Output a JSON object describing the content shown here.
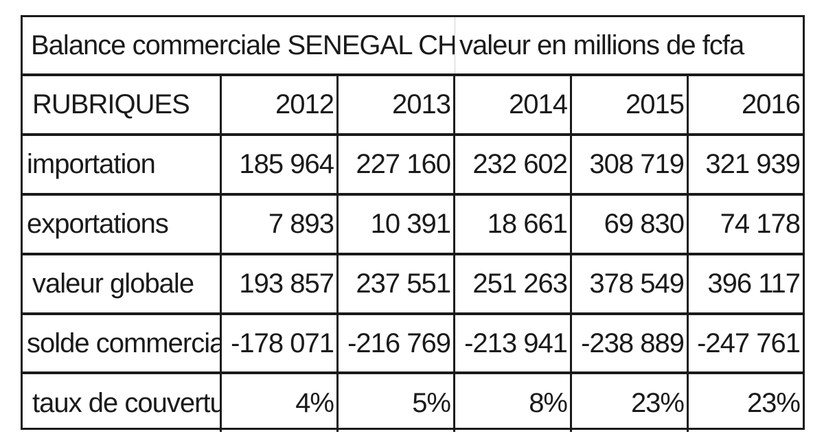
{
  "table": {
    "title": "Balance commerciale  SENEGAL CHINE",
    "unit": "valeur en millions de fcfa",
    "header_label": "RUBRIQUES",
    "years": [
      "2012",
      "2013",
      "2014",
      "2015",
      "2016"
    ],
    "rows": [
      {
        "label": "importation",
        "values": [
          "185 964",
          "227 160",
          "232 602",
          "308 719",
          "321 939"
        ]
      },
      {
        "label": "exportations",
        "values": [
          "7 893",
          "10 391",
          "18 661",
          "69 830",
          "74 178"
        ]
      },
      {
        "label": "valeur globale",
        "values": [
          "193 857",
          "237 551",
          "251 263",
          "378 549",
          "396 117"
        ]
      },
      {
        "label": "solde commerciale",
        "values": [
          "-178 071",
          "-216 769",
          "-213 941",
          "-238 889",
          "-247 761"
        ]
      },
      {
        "label": "taux de couverture",
        "values": [
          "4%",
          "5%",
          "8%",
          "23%",
          "23%"
        ]
      }
    ]
  }
}
